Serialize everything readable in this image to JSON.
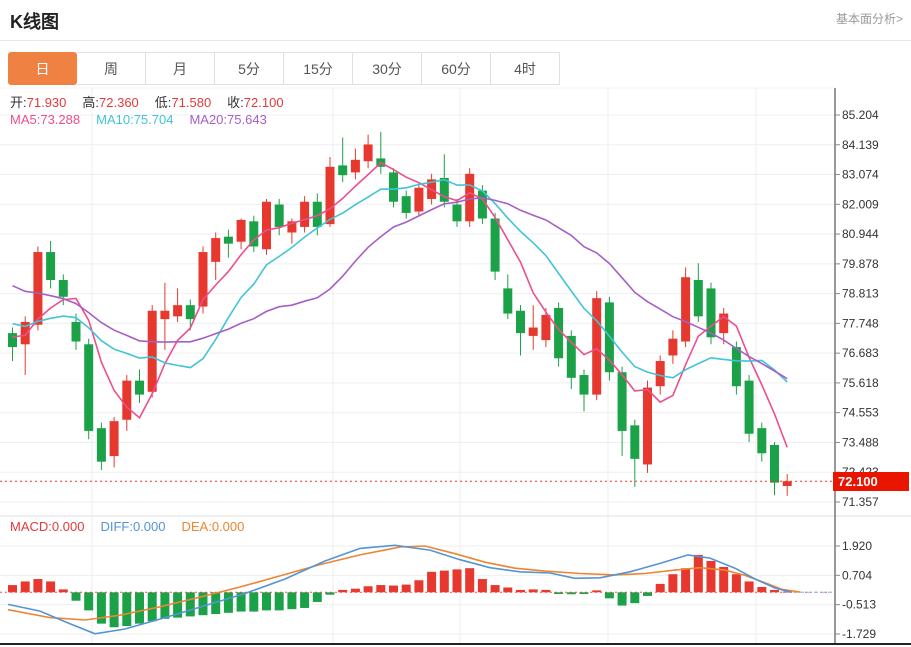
{
  "header": {
    "title": "K线图",
    "link": "基本面分析>"
  },
  "tabs": {
    "items": [
      "日",
      "周",
      "月",
      "5分",
      "15分",
      "30分",
      "60分",
      "4时"
    ],
    "active_index": 0
  },
  "info_bar": {
    "ohlc": [
      {
        "key": "open",
        "label": "开:",
        "value": "71.930"
      },
      {
        "key": "high",
        "label": "高:",
        "value": "72.360"
      },
      {
        "key": "low",
        "label": "低:",
        "value": "71.580"
      },
      {
        "key": "close",
        "label": "收:",
        "value": "72.100"
      }
    ],
    "ma": [
      {
        "key": "ma5",
        "label": "MA5:",
        "value": "73.288",
        "color": "#ed4e8d"
      },
      {
        "key": "ma10",
        "label": "MA10:",
        "value": "75.704",
        "color": "#41c4d8"
      },
      {
        "key": "ma20",
        "label": "MA20:",
        "value": "75.643",
        "color": "#a55fc5"
      }
    ]
  },
  "macd_bar": [
    {
      "key": "macd",
      "label": "MACD:",
      "value": "0.000",
      "color": "#e23b3b"
    },
    {
      "key": "diff",
      "label": "DIFF:",
      "value": "0.000",
      "color": "#5494d6"
    },
    {
      "key": "dea",
      "label": "DEA:",
      "value": "0.000",
      "color": "#ed8532"
    }
  ],
  "colors": {
    "candle_up": "#e6382e",
    "candle_down": "#1ba249",
    "ma5": "#ed4e8d",
    "ma10": "#41c4d8",
    "ma20": "#a55fc5",
    "diff": "#5494d6",
    "dea": "#ed8532",
    "price_line": "#ff3322",
    "zero_line": "#ef4b56",
    "badge_bg": "#ea1500",
    "tab_active_bg": "#ef8243",
    "grid": "#efefef",
    "vgrid": "#ececec",
    "axis": "#555"
  },
  "chart_data": {
    "type": "candlestick+macd",
    "title": "K线图 日K (daily candlestick with MA5/MA10/MA20 and MACD)",
    "legend_position": "top-left",
    "grid": true,
    "y_axis_ticks_main": [
      "85.204",
      "84.139",
      "83.074",
      "82.009",
      "80.944",
      "79.878",
      "78.813",
      "77.748",
      "76.683",
      "75.618",
      "74.553",
      "73.488",
      "72.423",
      "71.357"
    ],
    "y_axis_ticks_macd": [
      "1.920",
      "0.704",
      "-0.513",
      "-1.729"
    ],
    "ylim_main": [
      71.357,
      85.204
    ],
    "ylim_macd": [
      -1.729,
      1.92
    ],
    "current_price": 72.1,
    "current_price_label": "72.100",
    "last_candle_ohlc": {
      "open": 71.93,
      "high": 72.36,
      "low": 71.58,
      "close": 72.1
    },
    "ma_values_displayed": {
      "ma5": 73.288,
      "ma10": 75.704,
      "ma20": 75.643
    },
    "macd_values_displayed": {
      "macd": 0.0,
      "diff": 0.0,
      "dea": 0.0
    },
    "candles_ohlc": [
      [
        77.4,
        77.6,
        76.4,
        76.9
      ],
      [
        77.0,
        78.0,
        75.9,
        77.8
      ],
      [
        77.7,
        80.5,
        77.5,
        80.3
      ],
      [
        80.3,
        80.7,
        79.0,
        79.3
      ],
      [
        79.3,
        79.5,
        78.4,
        78.7
      ],
      [
        77.8,
        78.1,
        76.8,
        77.1
      ],
      [
        77.0,
        77.2,
        73.6,
        73.9
      ],
      [
        74.0,
        74.2,
        72.5,
        72.8
      ],
      [
        73.0,
        74.4,
        72.6,
        74.25
      ],
      [
        74.3,
        75.9,
        73.9,
        75.7
      ],
      [
        75.7,
        76.1,
        74.9,
        75.2
      ],
      [
        75.3,
        78.4,
        75.1,
        78.2
      ],
      [
        77.9,
        79.2,
        76.8,
        78.2
      ],
      [
        78.0,
        79.0,
        77.8,
        78.4
      ],
      [
        78.4,
        78.6,
        77.5,
        77.9
      ],
      [
        78.35,
        80.5,
        78.1,
        80.3
      ],
      [
        79.95,
        81.0,
        79.3,
        80.8
      ],
      [
        80.85,
        81.1,
        80.1,
        80.6
      ],
      [
        80.67,
        81.5,
        80.4,
        81.45
      ],
      [
        81.4,
        81.6,
        80.3,
        80.5
      ],
      [
        80.4,
        82.2,
        80.2,
        82.1
      ],
      [
        82.0,
        82.2,
        80.9,
        81.2
      ],
      [
        81.0,
        81.5,
        80.6,
        81.4
      ],
      [
        81.2,
        82.3,
        81.0,
        82.1
      ],
      [
        82.1,
        82.4,
        80.9,
        81.2
      ],
      [
        81.3,
        83.7,
        81.2,
        83.35
      ],
      [
        83.4,
        84.4,
        82.8,
        83.05
      ],
      [
        83.15,
        84.0,
        82.9,
        83.6
      ],
      [
        83.55,
        84.5,
        83.3,
        84.15
      ],
      [
        83.65,
        84.6,
        83.1,
        83.35
      ],
      [
        83.15,
        83.3,
        81.9,
        82.1
      ],
      [
        82.3,
        82.5,
        81.5,
        81.7
      ],
      [
        81.75,
        82.8,
        81.6,
        82.6
      ],
      [
        82.2,
        83.1,
        82.0,
        82.9
      ],
      [
        82.95,
        83.8,
        81.9,
        82.1
      ],
      [
        82.0,
        82.2,
        81.2,
        81.4
      ],
      [
        81.4,
        83.3,
        81.2,
        83.1
      ],
      [
        82.5,
        82.7,
        81.3,
        81.5
      ],
      [
        81.5,
        81.7,
        79.3,
        79.6
      ],
      [
        79.0,
        79.5,
        77.9,
        78.1
      ],
      [
        78.2,
        78.4,
        76.6,
        77.4
      ],
      [
        77.3,
        78.4,
        76.8,
        77.6
      ],
      [
        77.15,
        78.3,
        76.9,
        78.05
      ],
      [
        78.3,
        78.5,
        76.2,
        76.5
      ],
      [
        77.3,
        77.5,
        75.4,
        75.8
      ],
      [
        75.9,
        76.1,
        74.6,
        75.2
      ],
      [
        75.2,
        78.9,
        75.0,
        78.65
      ],
      [
        78.5,
        78.7,
        75.7,
        76.0
      ],
      [
        76.0,
        76.2,
        73.0,
        73.9
      ],
      [
        74.1,
        74.3,
        71.9,
        72.9
      ],
      [
        72.7,
        75.7,
        72.4,
        75.45
      ],
      [
        75.5,
        76.6,
        75.2,
        76.4
      ],
      [
        76.6,
        77.5,
        76.3,
        77.2
      ],
      [
        77.1,
        79.75,
        76.9,
        79.4
      ],
      [
        79.3,
        79.9,
        77.8,
        78.0
      ],
      [
        79.0,
        79.2,
        77.0,
        77.25
      ],
      [
        77.4,
        78.3,
        77.0,
        78.1
      ],
      [
        76.9,
        77.1,
        75.2,
        75.5
      ],
      [
        75.7,
        75.9,
        73.5,
        73.8
      ],
      [
        74.0,
        74.2,
        72.8,
        73.1
      ],
      [
        73.4,
        73.5,
        71.6,
        72.05
      ],
      [
        71.93,
        72.36,
        71.58,
        72.1
      ]
    ],
    "ma_periods": [
      5,
      10,
      20
    ],
    "ma_seed_closes": [
      82.0,
      81.8,
      81.5,
      81.2,
      80.9,
      80.6,
      80.3,
      80.0,
      79.7,
      79.4,
      79.1,
      78.8,
      78.5,
      78.2,
      77.9,
      77.7,
      77.5,
      77.4,
      77.3,
      77.2
    ],
    "macd_hist": [
      0.3,
      0.45,
      0.55,
      0.45,
      0.12,
      -0.35,
      -0.75,
      -1.3,
      -1.45,
      -1.4,
      -1.3,
      -1.2,
      -1.1,
      -1.05,
      -1.0,
      -0.95,
      -0.9,
      -0.85,
      -0.8,
      -0.8,
      -0.75,
      -0.75,
      -0.7,
      -0.65,
      -0.4,
      -0.1,
      0.1,
      0.15,
      0.25,
      0.3,
      0.28,
      0.32,
      0.5,
      0.85,
      0.9,
      0.95,
      1.0,
      0.55,
      0.3,
      0.2,
      0.1,
      0.12,
      0.1,
      -0.07,
      -0.08,
      -0.07,
      0.08,
      -0.25,
      -0.55,
      -0.45,
      -0.15,
      0.35,
      0.75,
      1.0,
      1.55,
      1.3,
      1.05,
      0.75,
      0.45,
      0.22,
      0.1,
      0.03
    ],
    "diff_line": [
      [
        8,
        -0.5
      ],
      [
        40,
        -0.78
      ],
      [
        70,
        -1.3
      ],
      [
        95,
        -1.72
      ],
      [
        125,
        -1.52
      ],
      [
        165,
        -1.05
      ],
      [
        205,
        -0.55
      ],
      [
        245,
        -0.05
      ],
      [
        285,
        0.55
      ],
      [
        325,
        1.3
      ],
      [
        360,
        1.82
      ],
      [
        395,
        1.95
      ],
      [
        430,
        1.75
      ],
      [
        460,
        1.35
      ],
      [
        490,
        1.02
      ],
      [
        520,
        0.85
      ],
      [
        550,
        0.8
      ],
      [
        575,
        0.58
      ],
      [
        600,
        0.6
      ],
      [
        630,
        0.85
      ],
      [
        660,
        1.2
      ],
      [
        688,
        1.55
      ],
      [
        710,
        1.42
      ],
      [
        735,
        1.0
      ],
      [
        755,
        0.55
      ],
      [
        775,
        0.18
      ],
      [
        790,
        0.02
      ]
    ],
    "dea_line": [
      [
        8,
        -0.72
      ],
      [
        50,
        -1.05
      ],
      [
        85,
        -1.15
      ],
      [
        120,
        -0.95
      ],
      [
        160,
        -0.6
      ],
      [
        200,
        -0.2
      ],
      [
        240,
        0.22
      ],
      [
        280,
        0.68
      ],
      [
        320,
        1.15
      ],
      [
        360,
        1.55
      ],
      [
        400,
        1.88
      ],
      [
        425,
        1.92
      ],
      [
        455,
        1.6
      ],
      [
        485,
        1.25
      ],
      [
        515,
        1.0
      ],
      [
        545,
        0.88
      ],
      [
        580,
        0.78
      ],
      [
        615,
        0.72
      ],
      [
        645,
        0.78
      ],
      [
        675,
        0.92
      ],
      [
        700,
        1.02
      ],
      [
        725,
        0.92
      ],
      [
        745,
        0.7
      ],
      [
        765,
        0.4
      ],
      [
        782,
        0.12
      ],
      [
        800,
        0.01
      ]
    ],
    "zero_dashed_segment_x": [
      786,
      835
    ]
  }
}
